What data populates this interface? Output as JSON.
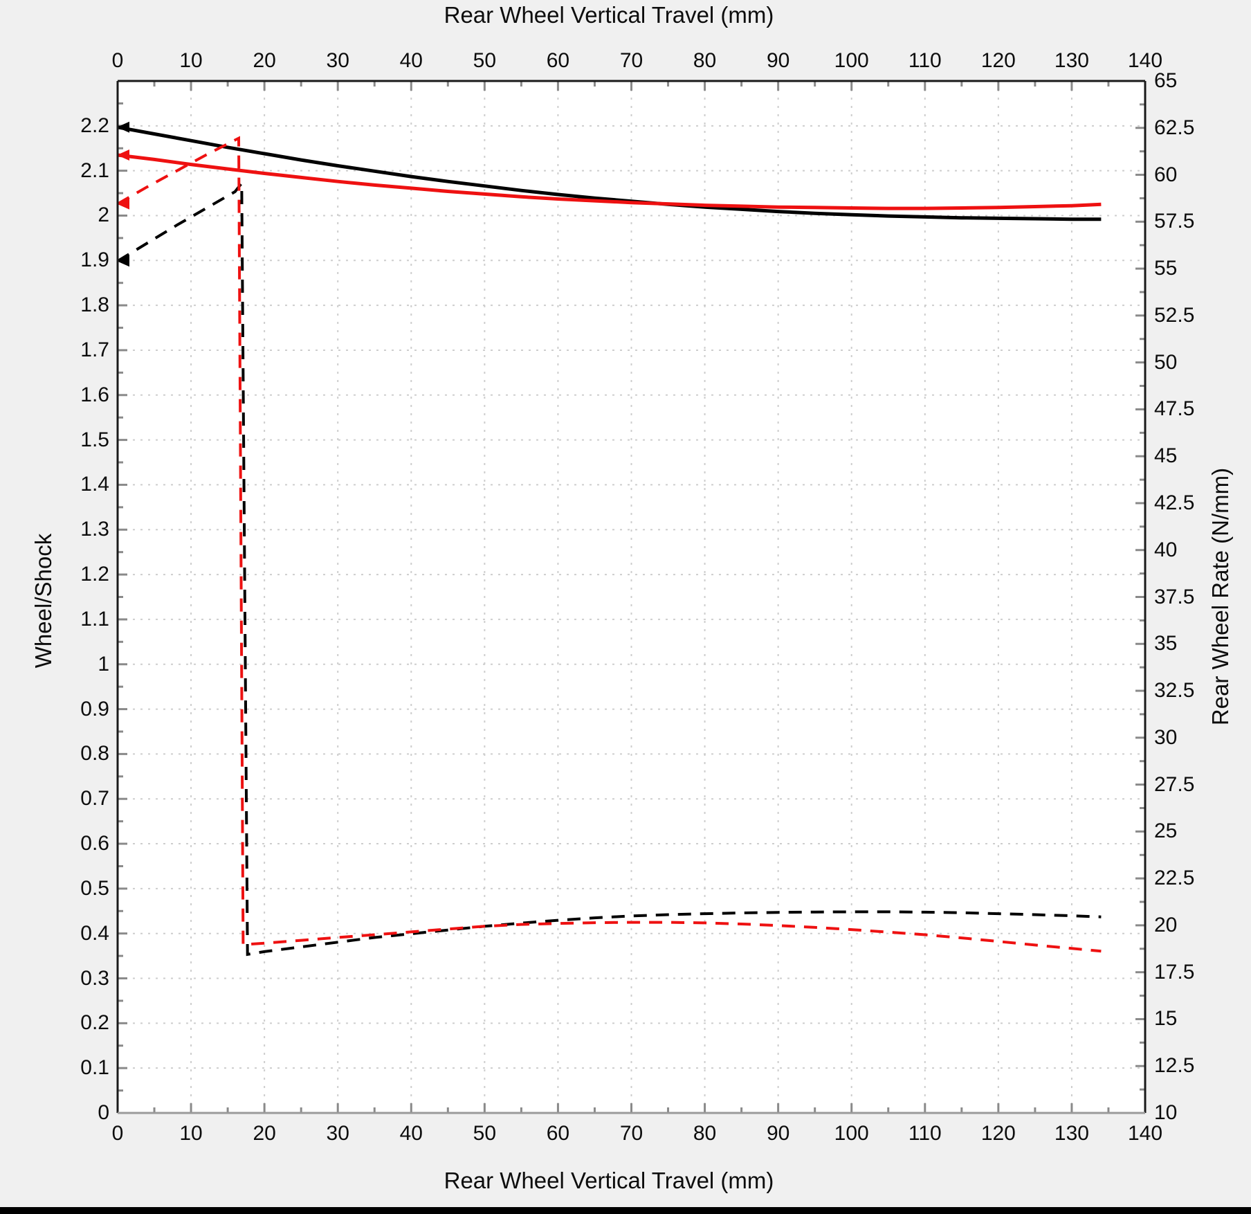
{
  "window": {
    "background": "#f0f0f0",
    "plot_background": "#ffffff",
    "bottom_bar_color": "#000000"
  },
  "chart_data": {
    "type": "line",
    "title_top": "Rear Wheel Vertical Travel (mm)",
    "xlabel_bottom": "Rear Wheel Vertical Travel (mm)",
    "ylabel_left": "Wheel/Shock",
    "ylabel_right": "Rear Wheel Rate (N/mm)",
    "x_range": [
      0,
      140
    ],
    "x_major": 10,
    "x_minor": 5,
    "y_left_range": [
      0,
      2.3
    ],
    "y_left_major": 0.1,
    "y_left_minor": 0.05,
    "y_right_range": [
      10,
      65
    ],
    "y_right_major": 2.5,
    "y_right_minor": 1.25,
    "x_tick_labels": [
      "0",
      "10",
      "20",
      "30",
      "40",
      "50",
      "60",
      "70",
      "80",
      "90",
      "100",
      "110",
      "120",
      "130",
      "140"
    ],
    "y_left_tick_labels": [
      "0",
      "0.1",
      "0.2",
      "0.3",
      "0.4",
      "0.5",
      "0.6",
      "0.7",
      "0.8",
      "0.9",
      "1",
      "1.1",
      "1.2",
      "1.3",
      "1.4",
      "1.5",
      "1.6",
      "1.7",
      "1.8",
      "1.9",
      "2",
      "2.1",
      "2.2"
    ],
    "y_right_tick_labels": [
      "10",
      "12.5",
      "15",
      "17.5",
      "20",
      "22.5",
      "25",
      "27.5",
      "30",
      "32.5",
      "35",
      "37.5",
      "40",
      "42.5",
      "45",
      "47.5",
      "50",
      "52.5",
      "55",
      "57.5",
      "60",
      "62.5",
      "65"
    ],
    "grid": {
      "horizontal_on": true,
      "vertical_on": true,
      "grid_color": "#cdcdcd",
      "tick_color": "#8a8a8a",
      "spine_color": "#1a1a1a",
      "bottom_spine_color": "#9a9a9a"
    },
    "legend": "none",
    "series": [
      {
        "name": "wheel-shock-ratio-black",
        "axis": "left",
        "style": "solid",
        "color": "#000000",
        "marker_start": "left-arrow",
        "points": [
          [
            0,
            2.197
          ],
          [
            5,
            2.182
          ],
          [
            10,
            2.167
          ],
          [
            15,
            2.152
          ],
          [
            20,
            2.138
          ],
          [
            25,
            2.124
          ],
          [
            30,
            2.111
          ],
          [
            35,
            2.099
          ],
          [
            40,
            2.087
          ],
          [
            45,
            2.076
          ],
          [
            50,
            2.066
          ],
          [
            55,
            2.056
          ],
          [
            60,
            2.047
          ],
          [
            65,
            2.039
          ],
          [
            70,
            2.032
          ],
          [
            75,
            2.025
          ],
          [
            80,
            2.019
          ],
          [
            85,
            2.014
          ],
          [
            90,
            2.009
          ],
          [
            95,
            2.005
          ],
          [
            100,
            2.002
          ],
          [
            105,
            1.999
          ],
          [
            110,
            1.997
          ],
          [
            115,
            1.995
          ],
          [
            120,
            1.994
          ],
          [
            125,
            1.993
          ],
          [
            130,
            1.992
          ],
          [
            134,
            1.992
          ]
        ]
      },
      {
        "name": "wheel-shock-ratio-red",
        "axis": "left",
        "style": "solid",
        "color": "#ee1111",
        "marker_start": "left-arrow",
        "points": [
          [
            0,
            2.135
          ],
          [
            5,
            2.125
          ],
          [
            10,
            2.114
          ],
          [
            15,
            2.104
          ],
          [
            20,
            2.094
          ],
          [
            25,
            2.085
          ],
          [
            30,
            2.076
          ],
          [
            35,
            2.068
          ],
          [
            40,
            2.061
          ],
          [
            45,
            2.054
          ],
          [
            50,
            2.048
          ],
          [
            55,
            2.042
          ],
          [
            60,
            2.037
          ],
          [
            65,
            2.033
          ],
          [
            70,
            2.029
          ],
          [
            75,
            2.026
          ],
          [
            80,
            2.023
          ],
          [
            85,
            2.021
          ],
          [
            90,
            2.019
          ],
          [
            95,
            2.018
          ],
          [
            100,
            2.017
          ],
          [
            105,
            2.016
          ],
          [
            110,
            2.016
          ],
          [
            115,
            2.017
          ],
          [
            120,
            2.018
          ],
          [
            125,
            2.02
          ],
          [
            130,
            2.022
          ],
          [
            134,
            2.025
          ]
        ]
      },
      {
        "name": "rear-wheel-rate-black",
        "axis": "right",
        "style": "dashed",
        "color": "#000000",
        "marker_start": "left-arrow",
        "points": [
          [
            0,
            55.4
          ],
          [
            4,
            56.35
          ],
          [
            8,
            57.3
          ],
          [
            12,
            58.2
          ],
          [
            16,
            59.1
          ],
          [
            16.9,
            59.55
          ],
          [
            17.7,
            18.45
          ],
          [
            20,
            18.6
          ],
          [
            25,
            18.85
          ],
          [
            30,
            19.1
          ],
          [
            35,
            19.35
          ],
          [
            40,
            19.55
          ],
          [
            45,
            19.75
          ],
          [
            50,
            19.95
          ],
          [
            55,
            20.12
          ],
          [
            60,
            20.27
          ],
          [
            65,
            20.4
          ],
          [
            70,
            20.5
          ],
          [
            75,
            20.57
          ],
          [
            80,
            20.62
          ],
          [
            85,
            20.66
          ],
          [
            90,
            20.69
          ],
          [
            95,
            20.71
          ],
          [
            100,
            20.72
          ],
          [
            105,
            20.72
          ],
          [
            110,
            20.7
          ],
          [
            115,
            20.67
          ],
          [
            120,
            20.62
          ],
          [
            125,
            20.57
          ],
          [
            130,
            20.51
          ],
          [
            134,
            20.45
          ]
        ]
      },
      {
        "name": "rear-wheel-rate-red",
        "axis": "right",
        "style": "dashed",
        "color": "#ee1111",
        "marker_start": "left-arrow",
        "points": [
          [
            0,
            58.45
          ],
          [
            4,
            59.35
          ],
          [
            8,
            60.2
          ],
          [
            12,
            61.05
          ],
          [
            16,
            61.85
          ],
          [
            16.5,
            61.95
          ],
          [
            17.1,
            18.97
          ],
          [
            20,
            19.05
          ],
          [
            25,
            19.2
          ],
          [
            30,
            19.35
          ],
          [
            35,
            19.5
          ],
          [
            40,
            19.65
          ],
          [
            45,
            19.8
          ],
          [
            50,
            19.95
          ],
          [
            55,
            20.05
          ],
          [
            60,
            20.1
          ],
          [
            65,
            20.14
          ],
          [
            70,
            20.16
          ],
          [
            75,
            20.16
          ],
          [
            80,
            20.13
          ],
          [
            85,
            20.07
          ],
          [
            90,
            19.99
          ],
          [
            95,
            19.89
          ],
          [
            100,
            19.77
          ],
          [
            105,
            19.64
          ],
          [
            110,
            19.5
          ],
          [
            115,
            19.33
          ],
          [
            120,
            19.14
          ],
          [
            125,
            18.95
          ],
          [
            130,
            18.77
          ],
          [
            134,
            18.62
          ]
        ]
      }
    ]
  }
}
